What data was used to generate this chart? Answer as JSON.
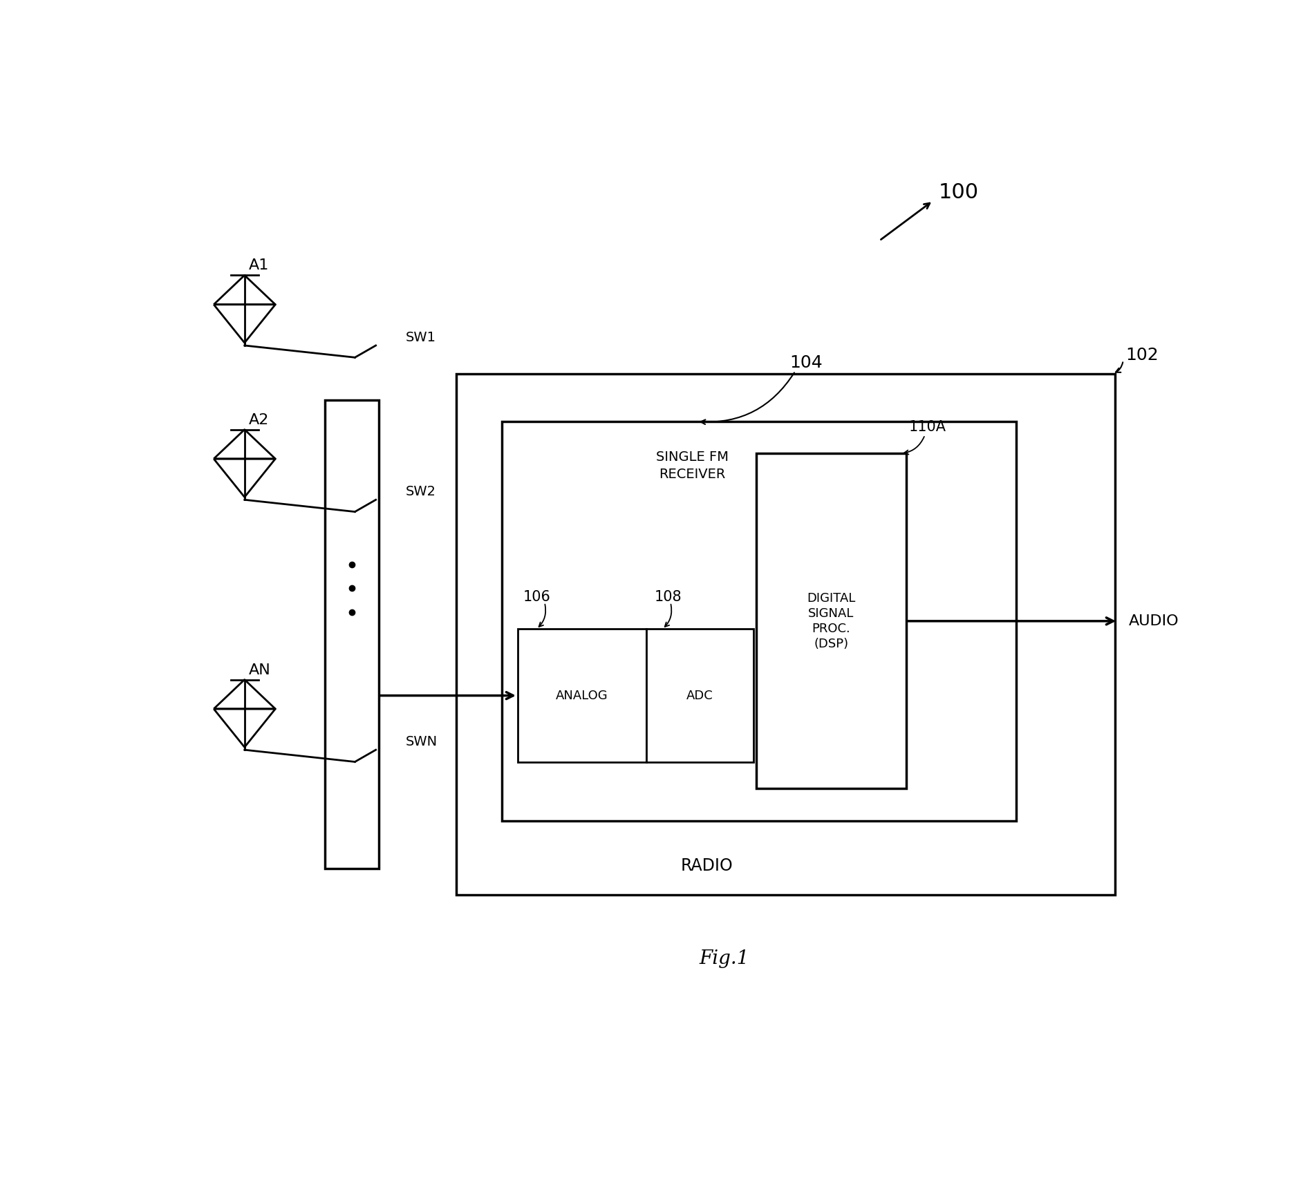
{
  "fig_width": 18.69,
  "fig_height": 17.41,
  "bg_color": "#ffffff",
  "label_100": "100",
  "label_102": "102",
  "label_104": "104",
  "label_106": "106",
  "label_108": "108",
  "label_110A": "110A",
  "label_radio": "RADIO",
  "label_sfm": "SINGLE FM\nRECEIVER",
  "label_analog": "ANALOG",
  "label_adc": "ADC",
  "label_dsp": "DIGITAL\nSIGNAL\nPROC.\n(DSP)",
  "label_audio": "AUDIO",
  "label_fig": "Fig.1",
  "label_A1": "A1",
  "label_A2": "A2",
  "label_AN": "AN",
  "label_SW1": "SW1",
  "label_SW2": "SW2",
  "label_SWN": "SWN",
  "lw": 2.0,
  "lw_thick": 2.5
}
